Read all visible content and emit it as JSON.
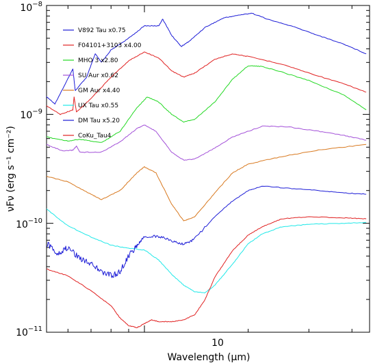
{
  "chart_data": {
    "type": "line",
    "title": "",
    "xlabel": "Wavelength (μm)",
    "ylabel": "νFν (erg s⁻¹ cm⁻²)",
    "x_scale": "log",
    "y_scale": "log",
    "xlim": [
      5.2,
      45
    ],
    "ylim": [
      1e-11,
      1e-08
    ],
    "x_tick_labels": [
      {
        "value": 10,
        "label": "10"
      }
    ],
    "y_tick_labels": [
      {
        "value": 1e-11,
        "base": "10",
        "exp": "−11"
      },
      {
        "value": 1e-10,
        "base": "10",
        "exp": "−10"
      },
      {
        "value": 1e-09,
        "base": "10",
        "exp": "−9"
      },
      {
        "value": 1e-08,
        "base": "10",
        "exp": "−8"
      }
    ],
    "grid": false,
    "legend_position": "top-left",
    "series": [
      {
        "name": "V892 Tau x0.75",
        "color": "#1a1ad6",
        "points": [
          [
            5.2,
            1.45e-09
          ],
          [
            5.5,
            1.25e-09
          ],
          [
            6.2,
            2.6e-09
          ],
          [
            6.3,
            1.65e-09
          ],
          [
            6.8,
            2.2e-09
          ],
          [
            7.2,
            3.6e-09
          ],
          [
            7.5,
            3e-09
          ],
          [
            8.0,
            3.9e-09
          ],
          [
            9.0,
            5e-09
          ],
          [
            10.0,
            6.5e-09
          ],
          [
            11.0,
            6.5e-09
          ],
          [
            11.3,
            7.5e-09
          ],
          [
            12.0,
            5.3e-09
          ],
          [
            12.8,
            4.2e-09
          ],
          [
            13.5,
            4.7e-09
          ],
          [
            15.0,
            6.3e-09
          ],
          [
            17.0,
            7.7e-09
          ],
          [
            19.0,
            8.2e-09
          ],
          [
            20.5,
            8.5e-09
          ],
          [
            23.0,
            7.4e-09
          ],
          [
            27.0,
            6.4e-09
          ],
          [
            32.0,
            5.3e-09
          ],
          [
            38.0,
            4.4e-09
          ],
          [
            44.0,
            3.6e-09
          ]
        ]
      },
      {
        "name": "F04101+3103 x4.00",
        "color": "#e02020",
        "points": [
          [
            5.2,
            1.2e-09
          ],
          [
            5.7,
            1e-09
          ],
          [
            6.2,
            1.1e-09
          ],
          [
            6.25,
            1.45e-09
          ],
          [
            6.35,
            1.05e-09
          ],
          [
            7.0,
            1.4e-09
          ],
          [
            8.0,
            2.2e-09
          ],
          [
            9.0,
            3.1e-09
          ],
          [
            10.0,
            3.75e-09
          ],
          [
            11.0,
            3.3e-09
          ],
          [
            12.0,
            2.5e-09
          ],
          [
            13.0,
            2.2e-09
          ],
          [
            14.0,
            2.4e-09
          ],
          [
            16.0,
            3.2e-09
          ],
          [
            18.0,
            3.6e-09
          ],
          [
            20.0,
            3.4e-09
          ],
          [
            25.0,
            2.9e-09
          ],
          [
            30.0,
            2.4e-09
          ],
          [
            38.0,
            1.9e-09
          ],
          [
            44.0,
            1.6e-09
          ]
        ]
      },
      {
        "name": "MHO 3 x2.80",
        "color": "#22d822",
        "points": [
          [
            5.2,
            6.2e-10
          ],
          [
            6.0,
            5.7e-10
          ],
          [
            6.5,
            5.9e-10
          ],
          [
            7.5,
            5.5e-10
          ],
          [
            8.5,
            7e-10
          ],
          [
            9.5,
            1.15e-09
          ],
          [
            10.2,
            1.45e-09
          ],
          [
            11.0,
            1.3e-09
          ],
          [
            12.0,
            1e-09
          ],
          [
            13.0,
            8.5e-10
          ],
          [
            14.0,
            9e-10
          ],
          [
            16.0,
            1.3e-09
          ],
          [
            18.0,
            2.1e-09
          ],
          [
            20.0,
            2.8e-09
          ],
          [
            22.0,
            2.75e-09
          ],
          [
            25.0,
            2.45e-09
          ],
          [
            30.0,
            2.05e-09
          ],
          [
            38.0,
            1.5e-09
          ],
          [
            44.0,
            1.1e-09
          ]
        ]
      },
      {
        "name": "SU Aur x0.62",
        "color": "#a24fd8",
        "points": [
          [
            5.2,
            5.3e-10
          ],
          [
            5.8,
            4.6e-10
          ],
          [
            6.2,
            4.7e-10
          ],
          [
            6.35,
            5.1e-10
          ],
          [
            6.5,
            4.5e-10
          ],
          [
            7.5,
            4.5e-10
          ],
          [
            8.5,
            5.6e-10
          ],
          [
            9.5,
            7.4e-10
          ],
          [
            10.0,
            8e-10
          ],
          [
            10.8,
            7e-10
          ],
          [
            12.0,
            4.5e-10
          ],
          [
            13.0,
            3.8e-10
          ],
          [
            14.0,
            3.9e-10
          ],
          [
            16.0,
            4.9e-10
          ],
          [
            18.0,
            6.2e-10
          ],
          [
            22.0,
            7.8e-10
          ],
          [
            26.0,
            7.7e-10
          ],
          [
            32.0,
            7e-10
          ],
          [
            38.0,
            6.4e-10
          ],
          [
            44.0,
            5.8e-10
          ]
        ]
      },
      {
        "name": "GM Aur x4.40",
        "color": "#d8781e",
        "points": [
          [
            5.2,
            2.7e-10
          ],
          [
            6.0,
            2.4e-10
          ],
          [
            7.0,
            1.85e-10
          ],
          [
            7.5,
            1.65e-10
          ],
          [
            8.5,
            2e-10
          ],
          [
            9.5,
            2.9e-10
          ],
          [
            10.0,
            3.3e-10
          ],
          [
            10.8,
            2.9e-10
          ],
          [
            12.0,
            1.5e-10
          ],
          [
            13.0,
            1.05e-10
          ],
          [
            14.0,
            1.15e-10
          ],
          [
            16.0,
            1.9e-10
          ],
          [
            18.0,
            2.9e-10
          ],
          [
            20.0,
            3.5e-10
          ],
          [
            25.0,
            4.1e-10
          ],
          [
            32.0,
            4.7e-10
          ],
          [
            44.0,
            5.3e-10
          ]
        ]
      },
      {
        "name": "UX Tau x0.55",
        "color": "#1de8e8",
        "points": [
          [
            5.2,
            1.35e-10
          ],
          [
            6.0,
            9.5e-11
          ],
          [
            7.0,
            7.5e-11
          ],
          [
            8.0,
            6.3e-11
          ],
          [
            9.0,
            5.9e-11
          ],
          [
            10.0,
            5.7e-11
          ],
          [
            11.0,
            4.6e-11
          ],
          [
            12.0,
            3.4e-11
          ],
          [
            13.0,
            2.7e-11
          ],
          [
            14.0,
            2.35e-11
          ],
          [
            15.0,
            2.3e-11
          ],
          [
            16.0,
            2.7e-11
          ],
          [
            18.0,
            4.2e-11
          ],
          [
            20.0,
            6.5e-11
          ],
          [
            22.0,
            8e-11
          ],
          [
            25.0,
            9.3e-11
          ],
          [
            30.0,
            9.8e-11
          ],
          [
            38.0,
            1e-10
          ],
          [
            44.0,
            1.02e-10
          ]
        ]
      },
      {
        "name": "DM Tau x5.20",
        "color": "#1a1ad6",
        "points": [
          [
            5.2,
            6.5e-11
          ],
          [
            5.6,
            5.3e-11
          ],
          [
            6.0,
            6e-11
          ],
          [
            6.5,
            4.8e-11
          ],
          [
            7.0,
            4.3e-11
          ],
          [
            7.5,
            3.6e-11
          ],
          [
            8.0,
            3.3e-11
          ],
          [
            8.5,
            3.6e-11
          ],
          [
            9.0,
            5e-11
          ],
          [
            9.5,
            6.2e-11
          ],
          [
            10.0,
            7.5e-11
          ],
          [
            11.0,
            7.6e-11
          ],
          [
            12.0,
            6.9e-11
          ],
          [
            13.0,
            6.4e-11
          ],
          [
            14.0,
            7.2e-11
          ],
          [
            16.0,
            1.15e-10
          ],
          [
            18.0,
            1.6e-10
          ],
          [
            20.0,
            2e-10
          ],
          [
            22.0,
            2.2e-10
          ],
          [
            26.0,
            2.1e-10
          ],
          [
            32.0,
            2e-10
          ],
          [
            38.0,
            1.9e-10
          ],
          [
            44.0,
            1.85e-10
          ]
        ]
      },
      {
        "name": "CoKu_Tau4",
        "color": "#e02020",
        "points": [
          [
            5.2,
            3.8e-11
          ],
          [
            6.0,
            3.3e-11
          ],
          [
            7.0,
            2.4e-11
          ],
          [
            8.0,
            1.75e-11
          ],
          [
            8.5,
            1.35e-11
          ],
          [
            9.0,
            1.15e-11
          ],
          [
            9.5,
            1.1e-11
          ],
          [
            10.0,
            1.2e-11
          ],
          [
            10.5,
            1.3e-11
          ],
          [
            11.0,
            1.25e-11
          ],
          [
            12.0,
            1.25e-11
          ],
          [
            13.0,
            1.3e-11
          ],
          [
            14.0,
            1.45e-11
          ],
          [
            15.0,
            2e-11
          ],
          [
            16.0,
            3.2e-11
          ],
          [
            18.0,
            5.6e-11
          ],
          [
            20.0,
            7.8e-11
          ],
          [
            22.0,
            9.3e-11
          ],
          [
            25.0,
            1.1e-10
          ],
          [
            30.0,
            1.15e-10
          ],
          [
            38.0,
            1.12e-10
          ],
          [
            44.0,
            1.1e-10
          ]
        ]
      }
    ]
  }
}
